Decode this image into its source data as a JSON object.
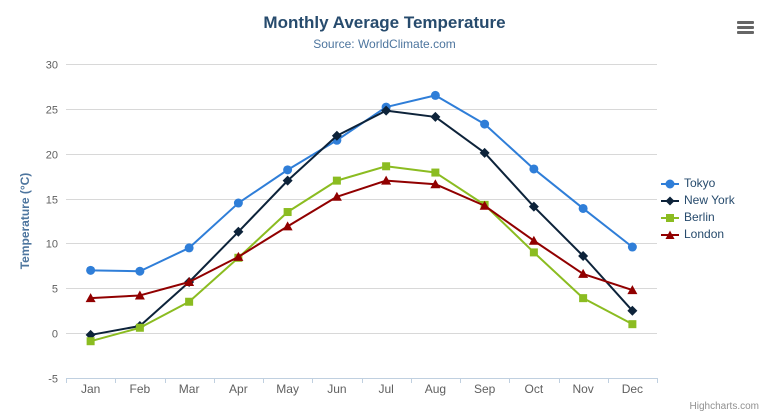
{
  "credits_label": "Highcharts.com",
  "menu": {
    "icon": "hamburger-menu-icon"
  },
  "colors": {
    "title": "#274b6d",
    "subtitle": "#4d759e",
    "axis_label": "#606060",
    "grid_line": "#d8d8d8",
    "axis_line": "#c0d0e0",
    "legend_text": "#274b6d",
    "menu_icon": "#666666",
    "credits": "#909090"
  },
  "chart_data": {
    "type": "line",
    "title": "Monthly Average Temperature",
    "subtitle": "Source: WorldClimate.com",
    "xlabel": "",
    "ylabel": "Temperature (°C)",
    "ylim": [
      -5,
      30
    ],
    "yticks": [
      -5,
      0,
      5,
      10,
      15,
      20,
      25,
      30
    ],
    "grid": true,
    "legend_position": "right",
    "categories": [
      "Jan",
      "Feb",
      "Mar",
      "Apr",
      "May",
      "Jun",
      "Jul",
      "Aug",
      "Sep",
      "Oct",
      "Nov",
      "Dec"
    ],
    "series": [
      {
        "name": "Tokyo",
        "color": "#2f7ed8",
        "marker": "circle",
        "values": [
          7.0,
          6.9,
          9.5,
          14.5,
          18.2,
          21.5,
          25.2,
          26.5,
          23.3,
          18.3,
          13.9,
          9.6
        ]
      },
      {
        "name": "New York",
        "color": "#0d233a",
        "marker": "diamond",
        "values": [
          -0.2,
          0.8,
          5.7,
          11.3,
          17.0,
          22.0,
          24.8,
          24.1,
          20.1,
          14.1,
          8.6,
          2.5
        ]
      },
      {
        "name": "Berlin",
        "color": "#8bbc21",
        "marker": "square",
        "values": [
          -0.9,
          0.6,
          3.5,
          8.4,
          13.5,
          17.0,
          18.6,
          17.9,
          14.3,
          9.0,
          3.9,
          1.0
        ]
      },
      {
        "name": "London",
        "color": "#910000",
        "marker": "triangle",
        "values": [
          3.9,
          4.2,
          5.7,
          8.5,
          11.9,
          15.2,
          17.0,
          16.6,
          14.2,
          10.3,
          6.6,
          4.8
        ]
      }
    ]
  }
}
